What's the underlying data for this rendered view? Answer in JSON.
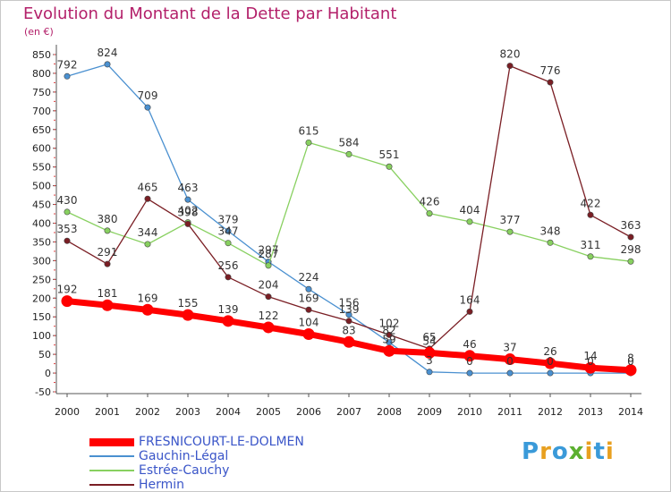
{
  "header": {
    "title": "Evolution du Montant de la Dette par Habitant",
    "unit": "(en €)"
  },
  "logo": {
    "letters": [
      "P",
      "r",
      "o",
      "x",
      "i",
      "t",
      "i"
    ],
    "colors": [
      "#3a9ad9",
      "#e8a020",
      "#3a9ad9",
      "#5cb030",
      "#e8a020",
      "#3a9ad9",
      "#e8a020"
    ]
  },
  "chart_data": {
    "type": "line",
    "title": "Evolution du Montant de la Dette par Habitant",
    "ylabel": "(en €)",
    "xlabel": "",
    "ylim": [
      -50,
      850
    ],
    "ytick_step": 50,
    "grid": false,
    "legend_position": "bottom-left",
    "x": [
      "2000",
      "2001",
      "2002",
      "2003",
      "2004",
      "2005",
      "2006",
      "2007",
      "2008",
      "2009",
      "2010",
      "2011",
      "2012",
      "2013",
      "2014"
    ],
    "series": [
      {
        "name": "FRESNICOURT-LE-DOLMEN",
        "color": "#ff0000",
        "values": [
          192,
          181,
          169,
          155,
          139,
          122,
          104,
          83,
          59,
          54,
          46,
          37,
          26,
          14,
          8
        ],
        "labels": [
          "192",
          "181",
          "169",
          "155",
          "139",
          "122",
          "104",
          "83",
          "59",
          "54",
          "46",
          "37",
          "26",
          "14",
          "8"
        ]
      },
      {
        "name": "Gauchin-Légal",
        "color": "#4a90d0",
        "values": [
          792,
          824,
          709,
          463,
          379,
          297,
          224,
          156,
          82,
          3,
          0,
          0,
          0,
          0,
          0
        ],
        "labels": [
          "792",
          "824",
          "709",
          "463",
          "379",
          "297",
          "224",
          "156",
          "82",
          "3",
          "0",
          "0",
          "0",
          "0",
          "0"
        ]
      },
      {
        "name": "Estrée-Cauchy",
        "color": "#88d060",
        "values": [
          430,
          380,
          344,
          402,
          347,
          287,
          615,
          584,
          551,
          426,
          404,
          377,
          348,
          311,
          298
        ],
        "labels": [
          "430",
          "380",
          "344",
          "402",
          "347",
          "287",
          "615",
          "584",
          "551",
          "426",
          "404",
          "377",
          "348",
          "311",
          "298"
        ]
      },
      {
        "name": "Hermin",
        "color": "#7a1e24",
        "values": [
          353,
          291,
          465,
          398,
          256,
          204,
          169,
          139,
          102,
          65,
          164,
          820,
          776,
          422,
          363
        ],
        "labels": [
          "353",
          "291",
          "465",
          "398",
          "256",
          "204",
          "169",
          "139",
          "102",
          "65",
          "164",
          "820",
          "776",
          "422",
          "363"
        ]
      }
    ]
  }
}
